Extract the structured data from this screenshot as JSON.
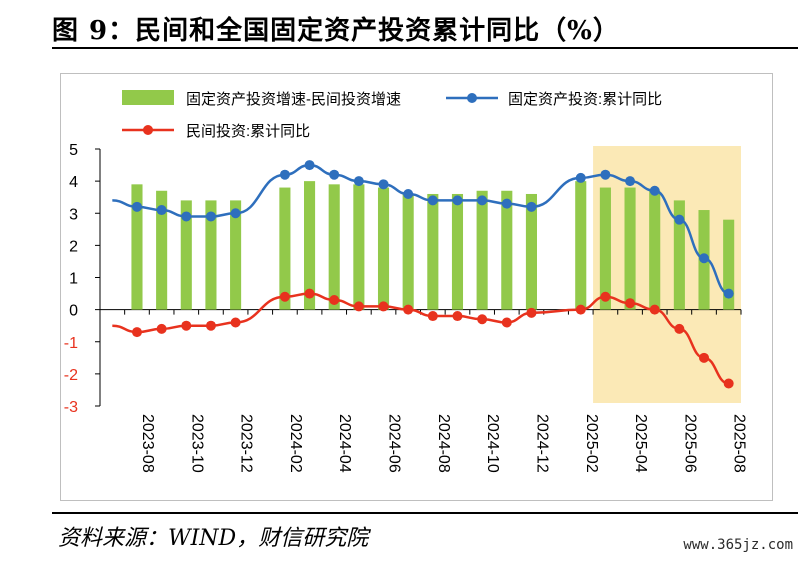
{
  "figure": {
    "title": "图 9：民间和全国固定资产投资累计同比（%）",
    "source": "资料来源：WIND，财信研究院",
    "watermark": "www.365jz.com"
  },
  "colors": {
    "bar": "#92c94a",
    "national_line": "#2e6fbd",
    "private_line": "#e8321e",
    "highlight": "#fbe9b6"
  },
  "chart_data": {
    "type": "bar",
    "x": [
      "2023-07",
      "2023-08",
      "2023-09",
      "2023-10",
      "2023-11",
      "2023-12",
      "2024-01",
      "2024-02",
      "2024-03",
      "2024-04",
      "2024-05",
      "2024-06",
      "2024-07",
      "2024-08",
      "2024-09",
      "2024-10",
      "2024-11",
      "2024-12",
      "2025-01",
      "2025-02",
      "2025-03",
      "2025-04",
      "2025-05",
      "2025-06",
      "2025-07",
      "2025-08"
    ],
    "x_tick_labels": [
      "2023-08",
      "2023-10",
      "2023-12",
      "2024-02",
      "2024-04",
      "2024-06",
      "2024-08",
      "2024-10",
      "2024-12",
      "2025-02",
      "2025-04",
      "2025-06",
      "2025-08"
    ],
    "ylim": [
      -3,
      5
    ],
    "yticks": [
      -3,
      -2,
      -1,
      0,
      1,
      2,
      3,
      4,
      5
    ],
    "legend_position": "top",
    "highlight_range": [
      "2025-03",
      "2025-08"
    ],
    "series": [
      {
        "name": "固定资产投资增速-民间投资增速",
        "kind": "bar",
        "values": [
          null,
          3.9,
          3.7,
          3.4,
          3.4,
          3.4,
          null,
          3.8,
          4.0,
          3.9,
          3.9,
          3.8,
          3.6,
          3.6,
          3.6,
          3.7,
          3.7,
          3.6,
          null,
          4.0,
          3.8,
          3.8,
          3.7,
          3.4,
          3.1,
          2.8
        ]
      },
      {
        "name": "固定资产投资:累计同比",
        "kind": "line",
        "values": [
          3.4,
          3.2,
          3.1,
          2.9,
          2.9,
          3.0,
          null,
          4.2,
          4.5,
          4.2,
          4.0,
          3.9,
          3.6,
          3.4,
          3.4,
          3.4,
          3.3,
          3.2,
          null,
          4.1,
          4.2,
          4.0,
          3.7,
          2.8,
          1.6,
          0.5
        ]
      },
      {
        "name": "民间投资:累计同比",
        "kind": "line",
        "values": [
          -0.5,
          -0.7,
          -0.6,
          -0.5,
          -0.5,
          -0.4,
          null,
          0.4,
          0.5,
          0.3,
          0.1,
          0.1,
          0.0,
          -0.2,
          -0.2,
          -0.3,
          -0.4,
          -0.1,
          null,
          0.0,
          0.4,
          0.2,
          0.0,
          -0.6,
          -1.5,
          -2.3
        ]
      }
    ]
  }
}
